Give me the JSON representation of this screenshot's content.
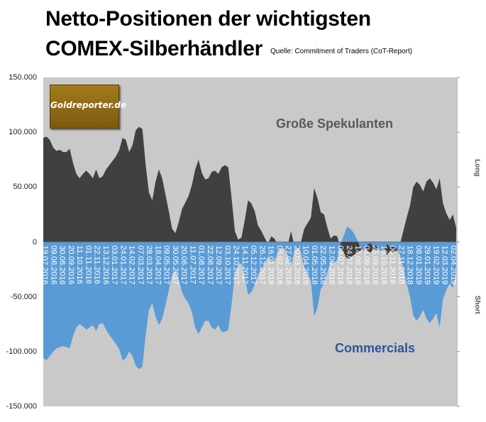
{
  "header": {
    "title_line1": "Netto-Positionen der wichtigsten",
    "title_line2": "COMEX-Silberhändler",
    "source": "Quelle: Commitment of Traders (CoT-Report)"
  },
  "logo": {
    "text": "Goldreporter.de"
  },
  "side_labels": {
    "long": "Long",
    "short": "Short"
  },
  "colors": {
    "spekulanten": "#404040",
    "commercials": "#5b9bd5",
    "plot_bg": "#c9c9c9"
  },
  "chart_data": {
    "type": "area",
    "ylim": [
      -150000,
      150000
    ],
    "yticks": [
      "150.000",
      "100.000",
      "50.000",
      "0",
      "-50.000",
      "-100.000",
      "-150.000"
    ],
    "ytick_values": [
      150000,
      100000,
      50000,
      0,
      -50000,
      -100000,
      -150000
    ],
    "x_tick_labels": [
      "19.07.2016",
      "09.08.2016",
      "30.08.2016",
      "20.09.2016",
      "11.10.2016",
      "01.11.2016",
      "22.11.2016",
      "13.12.2016",
      "03.01.2017",
      "24.01.2017",
      "14.02.2017",
      "07.03.2017",
      "28.03.2017",
      "18.04.2017",
      "09.05.2017",
      "30.05.2017",
      "20.06.2017",
      "11.07.2017",
      "01.08.2017",
      "22.08.2017",
      "12.09.2017",
      "03.10.2017",
      "24.10.2017",
      "14.11.2017",
      "05.12.2017",
      "26.12.2017",
      "16.01.2018",
      "06.02.2018",
      "27.02.2018",
      "20.03.2018",
      "10.04.2018",
      "01.05.2018",
      "22.05.2018",
      "12.06.2018",
      "03.07.2018",
      "24.07.2018",
      "14.08.2018",
      "04.09.2018",
      "25.09.2018",
      "16.10.2018",
      "06.11.2018",
      "27.11.2018",
      "18.12.2018",
      "08.01.2019",
      "29.01.2019",
      "19.02.2019",
      "12.03.2019",
      "02.04.2019"
    ],
    "series": [
      {
        "name": "Große Spekulanten",
        "values": [
          95000,
          96000,
          93000,
          86000,
          83000,
          84000,
          82000,
          82000,
          85000,
          72000,
          62000,
          58000,
          62000,
          65000,
          62000,
          58000,
          66000,
          58000,
          60000,
          66000,
          70000,
          74000,
          78000,
          84000,
          95000,
          93000,
          82000,
          88000,
          102000,
          105000,
          103000,
          70000,
          45000,
          38000,
          55000,
          66000,
          58000,
          43000,
          28000,
          12000,
          8000,
          18000,
          30000,
          36000,
          42000,
          52000,
          66000,
          75000,
          63000,
          57000,
          58000,
          64000,
          65000,
          62000,
          68000,
          70000,
          68000,
          40000,
          10000,
          2000,
          4000,
          20000,
          38000,
          35000,
          28000,
          15000,
          10000,
          4000,
          -2000,
          5000,
          3000,
          -3000,
          -6000,
          -5000,
          -3000,
          10000,
          -4000,
          -6000,
          0,
          12000,
          17000,
          22000,
          49000,
          40000,
          27000,
          25000,
          13000,
          3000,
          6000,
          5000,
          -6000,
          -10000,
          -16000,
          -14000,
          -12000,
          -10000,
          -8000,
          -3000,
          -8000,
          -10000,
          -6000,
          -8000,
          -3000,
          -4000,
          -12000,
          -8000,
          -10000,
          -8000,
          -2000,
          10000,
          22000,
          33000,
          50000,
          55000,
          52000,
          46000,
          55000,
          58000,
          54000,
          48000,
          58000,
          35000,
          26000,
          20000,
          25000,
          13000
        ]
      },
      {
        "name": "Commercials",
        "values": [
          -106000,
          -108000,
          -104000,
          -100000,
          -97000,
          -96000,
          -95000,
          -96000,
          -97000,
          -86000,
          -78000,
          -75000,
          -77000,
          -80000,
          -78000,
          -76000,
          -81000,
          -75000,
          -74000,
          -80000,
          -85000,
          -89000,
          -93000,
          -98000,
          -108000,
          -106000,
          -100000,
          -104000,
          -113000,
          -116000,
          -114000,
          -85000,
          -62000,
          -56000,
          -68000,
          -76000,
          -70000,
          -58000,
          -44000,
          -30000,
          -26000,
          -34000,
          -46000,
          -52000,
          -56000,
          -64000,
          -78000,
          -84000,
          -78000,
          -72000,
          -72000,
          -78000,
          -80000,
          -76000,
          -82000,
          -82000,
          -80000,
          -57000,
          -30000,
          -20000,
          -20000,
          -32000,
          -48000,
          -46000,
          -39000,
          -30000,
          -25000,
          -20000,
          -13000,
          -18000,
          -17000,
          -10000,
          -6000,
          -6000,
          -12000,
          -22000,
          -8000,
          -4000,
          -10000,
          -24000,
          -30000,
          -35000,
          -68000,
          -60000,
          -43000,
          -38000,
          -28000,
          -18000,
          -20000,
          -16000,
          -2000,
          6000,
          14000,
          12000,
          8000,
          2000,
          -5000,
          -8000,
          -3000,
          -1000,
          -5000,
          -3000,
          -8000,
          -8000,
          -2000,
          -5000,
          -4000,
          -6000,
          -12000,
          -24000,
          -38000,
          -50000,
          -67000,
          -72000,
          -68000,
          -62000,
          -70000,
          -74000,
          -70000,
          -65000,
          -78000,
          -52000,
          -44000,
          -38000,
          -42000,
          -28000
        ]
      }
    ],
    "annotations": [
      "Große Spekulanten",
      "Commercials"
    ]
  }
}
